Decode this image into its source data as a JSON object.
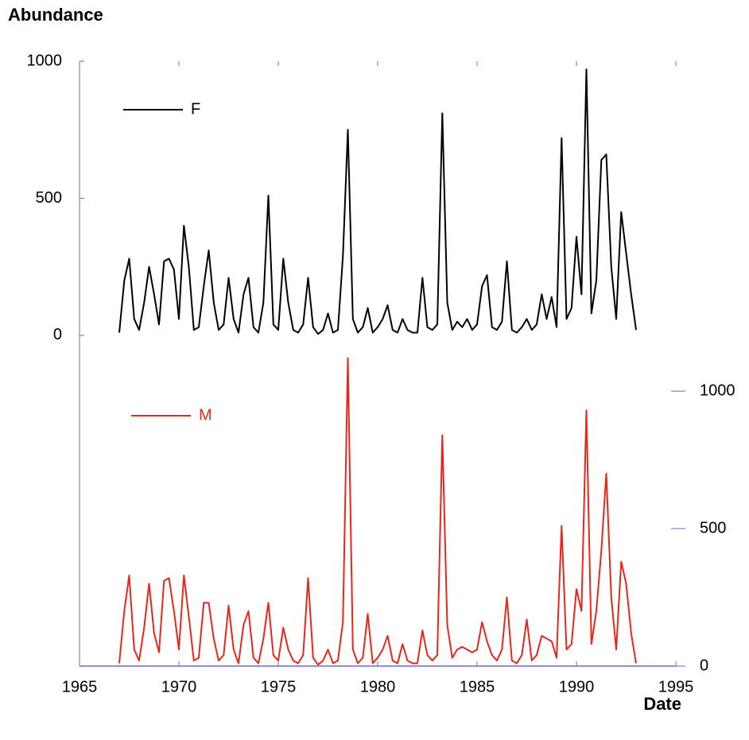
{
  "chart_data": {
    "type": "line",
    "ylabel": "Abundance",
    "xlabel": "Date",
    "x": [
      1967,
      1967.25,
      1967.5,
      1967.75,
      1968,
      1968.25,
      1968.5,
      1968.75,
      1969,
      1969.25,
      1969.5,
      1969.75,
      1970,
      1970.25,
      1970.5,
      1970.75,
      1971,
      1971.25,
      1971.5,
      1971.75,
      1972,
      1972.25,
      1972.5,
      1972.75,
      1973,
      1973.25,
      1973.5,
      1973.75,
      1974,
      1974.25,
      1974.5,
      1974.75,
      1975,
      1975.25,
      1975.5,
      1975.75,
      1976,
      1976.25,
      1976.5,
      1976.75,
      1977,
      1977.25,
      1977.5,
      1977.75,
      1978,
      1978.25,
      1978.5,
      1978.75,
      1979,
      1979.25,
      1979.5,
      1979.75,
      1980,
      1980.25,
      1980.5,
      1980.75,
      1981,
      1981.25,
      1981.5,
      1981.75,
      1982,
      1982.25,
      1982.5,
      1982.75,
      1983,
      1983.25,
      1983.5,
      1983.75,
      1984,
      1984.25,
      1984.5,
      1984.75,
      1985,
      1985.25,
      1985.5,
      1985.75,
      1986,
      1986.25,
      1986.5,
      1986.75,
      1987,
      1987.25,
      1987.5,
      1987.75,
      1988,
      1988.25,
      1988.5,
      1988.75,
      1989,
      1989.25,
      1989.5,
      1989.75,
      1990,
      1990.25,
      1990.5,
      1990.75,
      1991,
      1991.25,
      1991.5,
      1991.75,
      1992,
      1992.25,
      1992.5,
      1992.75,
      1993
    ],
    "series": [
      {
        "name": "F",
        "color": "#000000",
        "values": [
          10,
          200,
          280,
          60,
          20,
          120,
          250,
          150,
          40,
          270,
          280,
          240,
          60,
          400,
          250,
          20,
          30,
          180,
          310,
          120,
          20,
          40,
          210,
          60,
          10,
          150,
          210,
          30,
          10,
          120,
          510,
          40,
          20,
          280,
          120,
          20,
          10,
          40,
          210,
          30,
          5,
          20,
          80,
          10,
          20,
          290,
          750,
          60,
          10,
          30,
          100,
          10,
          30,
          60,
          110,
          20,
          10,
          60,
          20,
          10,
          10,
          210,
          30,
          20,
          40,
          810,
          120,
          20,
          50,
          30,
          60,
          20,
          40,
          180,
          220,
          30,
          20,
          50,
          270,
          20,
          10,
          30,
          60,
          20,
          40,
          150,
          60,
          140,
          30,
          720,
          60,
          100,
          360,
          150,
          970,
          80,
          200,
          640,
          660,
          250,
          60,
          450,
          300,
          150,
          20
        ]
      },
      {
        "name": "M",
        "color": "#e8261a",
        "axis": "y2",
        "values": [
          10,
          200,
          330,
          60,
          20,
          140,
          300,
          120,
          50,
          310,
          320,
          200,
          60,
          330,
          180,
          20,
          30,
          230,
          230,
          100,
          20,
          40,
          220,
          60,
          10,
          150,
          200,
          30,
          10,
          100,
          230,
          40,
          20,
          140,
          60,
          20,
          10,
          40,
          320,
          30,
          5,
          20,
          60,
          10,
          20,
          160,
          1120,
          60,
          10,
          30,
          190,
          10,
          30,
          60,
          110,
          20,
          10,
          80,
          20,
          10,
          10,
          130,
          40,
          20,
          40,
          840,
          150,
          30,
          60,
          70,
          60,
          50,
          60,
          160,
          90,
          40,
          20,
          60,
          250,
          20,
          10,
          40,
          170,
          20,
          40,
          110,
          100,
          90,
          30,
          510,
          60,
          80,
          280,
          200,
          930,
          80,
          200,
          420,
          700,
          250,
          60,
          380,
          300,
          120,
          10
        ]
      }
    ],
    "xlim": [
      1965,
      1995
    ],
    "xticks": [
      1965,
      1970,
      1975,
      1980,
      1985,
      1990,
      1995
    ],
    "ylim": [
      -1206,
      1000
    ],
    "yticks": [
      0,
      500,
      1000
    ],
    "y2lim": [
      0,
      2200
    ],
    "y2ticks": [
      0,
      500,
      1000
    ]
  }
}
